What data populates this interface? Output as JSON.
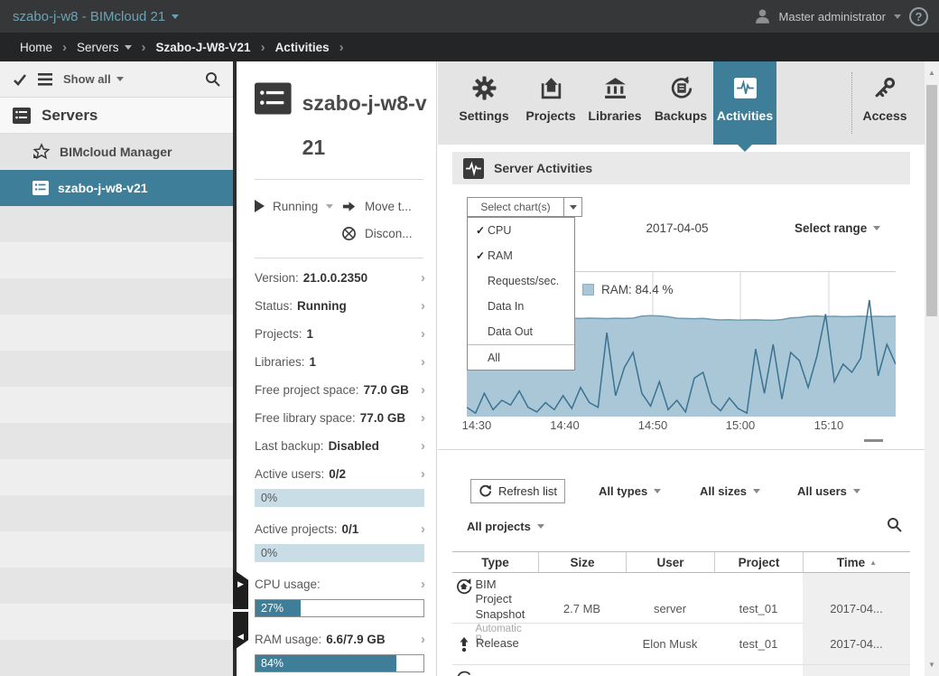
{
  "glyphs": {
    "question": "?",
    "check": "✓",
    "chevron_right": "›",
    "sort_asc": "▲",
    "up": "▲",
    "down": "▼",
    "right_tri": "▶",
    "left_tri": "◀"
  },
  "topbar": {
    "title": "szabo-j-w8 - BIMcloud 21",
    "user": "Master administrator"
  },
  "breadcrumb": {
    "home": "Home",
    "servers": "Servers",
    "server": "Szabo-J-W8-V21",
    "page": "Activities"
  },
  "sidebar": {
    "show_all": "Show all",
    "group": "Servers",
    "manager": "BIMcloud Manager",
    "server": "szabo-j-w8-v21"
  },
  "details": {
    "title": "szabo-j-w8-v21",
    "running": "Running",
    "move": "Move t...",
    "disconnect": "Discon...",
    "rows": [
      {
        "label": "Version:",
        "value": "21.0.0.2350"
      },
      {
        "label": "Status:",
        "value": "Running"
      },
      {
        "label": "Projects:",
        "value": "1"
      },
      {
        "label": "Libraries:",
        "value": "1"
      },
      {
        "label": "Free project space:",
        "value": "77.0 GB"
      },
      {
        "label": "Free library space:",
        "value": "77.0 GB"
      },
      {
        "label": "Last backup:",
        "value": "Disabled"
      },
      {
        "label": "Active users:",
        "value": "0/2",
        "bar_text": "0%",
        "bar_percent": 0,
        "bar_style": "flat"
      },
      {
        "label": "Active projects:",
        "value": "0/1",
        "bar_text": "0%",
        "bar_percent": 0,
        "bar_style": "flat"
      },
      {
        "label": "CPU usage:",
        "value": "",
        "bar_text": "27%",
        "bar_percent": 27,
        "bar_style": "meter"
      },
      {
        "label": "RAM usage:",
        "value": "6.6/7.9 GB",
        "bar_text": "84%",
        "bar_percent": 84,
        "bar_style": "meter"
      }
    ]
  },
  "tabs": {
    "settings": "Settings",
    "projects": "Projects",
    "libraries": "Libraries",
    "backups": "Backups",
    "activities": "Activities",
    "access": "Access"
  },
  "activities": {
    "header": "Server Activities",
    "select_charts": "Select chart(s)",
    "date": "2017-04-05",
    "range": "Select range",
    "dropdown": {
      "items": [
        {
          "label": "CPU",
          "checked": true
        },
        {
          "label": "RAM",
          "checked": true
        },
        {
          "label": "Requests/sec.",
          "checked": false
        },
        {
          "label": "Data In",
          "checked": false
        },
        {
          "label": "Data Out",
          "checked": false
        },
        {
          "label": "All",
          "checked": false,
          "divider_before": true
        }
      ]
    }
  },
  "chart_data": {
    "type": "area",
    "title": "Server Activities",
    "legend": [
      {
        "label": "RAM: 84.4 %",
        "color": "#a9c7d6"
      }
    ],
    "x_ticks": [
      {
        "label": "14:30",
        "f": 0.023
      },
      {
        "label": "14:40",
        "f": 0.2284
      },
      {
        "label": "14:50",
        "f": 0.4337
      },
      {
        "label": "15:00",
        "f": 0.6379
      },
      {
        "label": "15:10",
        "f": 0.8442
      }
    ],
    "ylim": [
      0,
      124
    ],
    "series": [
      {
        "name": "RAM",
        "style": "area",
        "color": "#a9c7d6",
        "edge": "#6f9cb4",
        "values": [
          84.5,
          84.2,
          84.3,
          84.1,
          84.4,
          84.2,
          84.0,
          84.3,
          84.5,
          84.2,
          84.6,
          85.0,
          84.4,
          84.2,
          84.5,
          84.3,
          84.1,
          84.4,
          84.2,
          84.5,
          86.2,
          86.6,
          86.3,
          85.6,
          84.4,
          84.2,
          84.0,
          84.3,
          83.4,
          82.9,
          83.1,
          82.7,
          82.9,
          83.0,
          82.8,
          82.6,
          83.2,
          84.6,
          85.0,
          86.0,
          86.3,
          85.8,
          86.0,
          85.7,
          85.9,
          86.1,
          85.8,
          86.0,
          85.9,
          86.1
        ]
      },
      {
        "name": "CPU",
        "style": "line",
        "color": "#3a7292",
        "values": [
          8,
          3,
          20,
          6,
          14,
          10,
          22,
          8,
          4,
          12,
          6,
          18,
          7,
          25,
          12,
          8,
          72,
          18,
          42,
          55,
          20,
          9,
          30,
          6,
          14,
          4,
          33,
          38,
          12,
          5,
          16,
          7,
          3,
          58,
          20,
          62,
          15,
          55,
          48,
          25,
          52,
          88,
          30,
          45,
          38,
          50,
          100,
          35,
          62,
          45
        ]
      }
    ]
  },
  "list": {
    "refresh": "Refresh list",
    "all_types": "All types",
    "all_sizes": "All sizes",
    "all_users": "All users",
    "all_projects": "All projects",
    "headers": {
      "type": "Type",
      "size": "Size",
      "user": "User",
      "project": "Project",
      "time": "Time"
    },
    "rows": [
      {
        "type": "BIM Project Snapshot",
        "note": "Automatic B...",
        "size": "2.7 MB",
        "user": "server",
        "project": "test_01",
        "time": "2017-04..."
      },
      {
        "type": "Release",
        "note": "",
        "size": "",
        "user": "Elon Musk",
        "project": "test_01",
        "time": "2017-04..."
      },
      {
        "type": "",
        "note": "",
        "size": "",
        "user": "",
        "project": "",
        "time": ""
      }
    ]
  }
}
